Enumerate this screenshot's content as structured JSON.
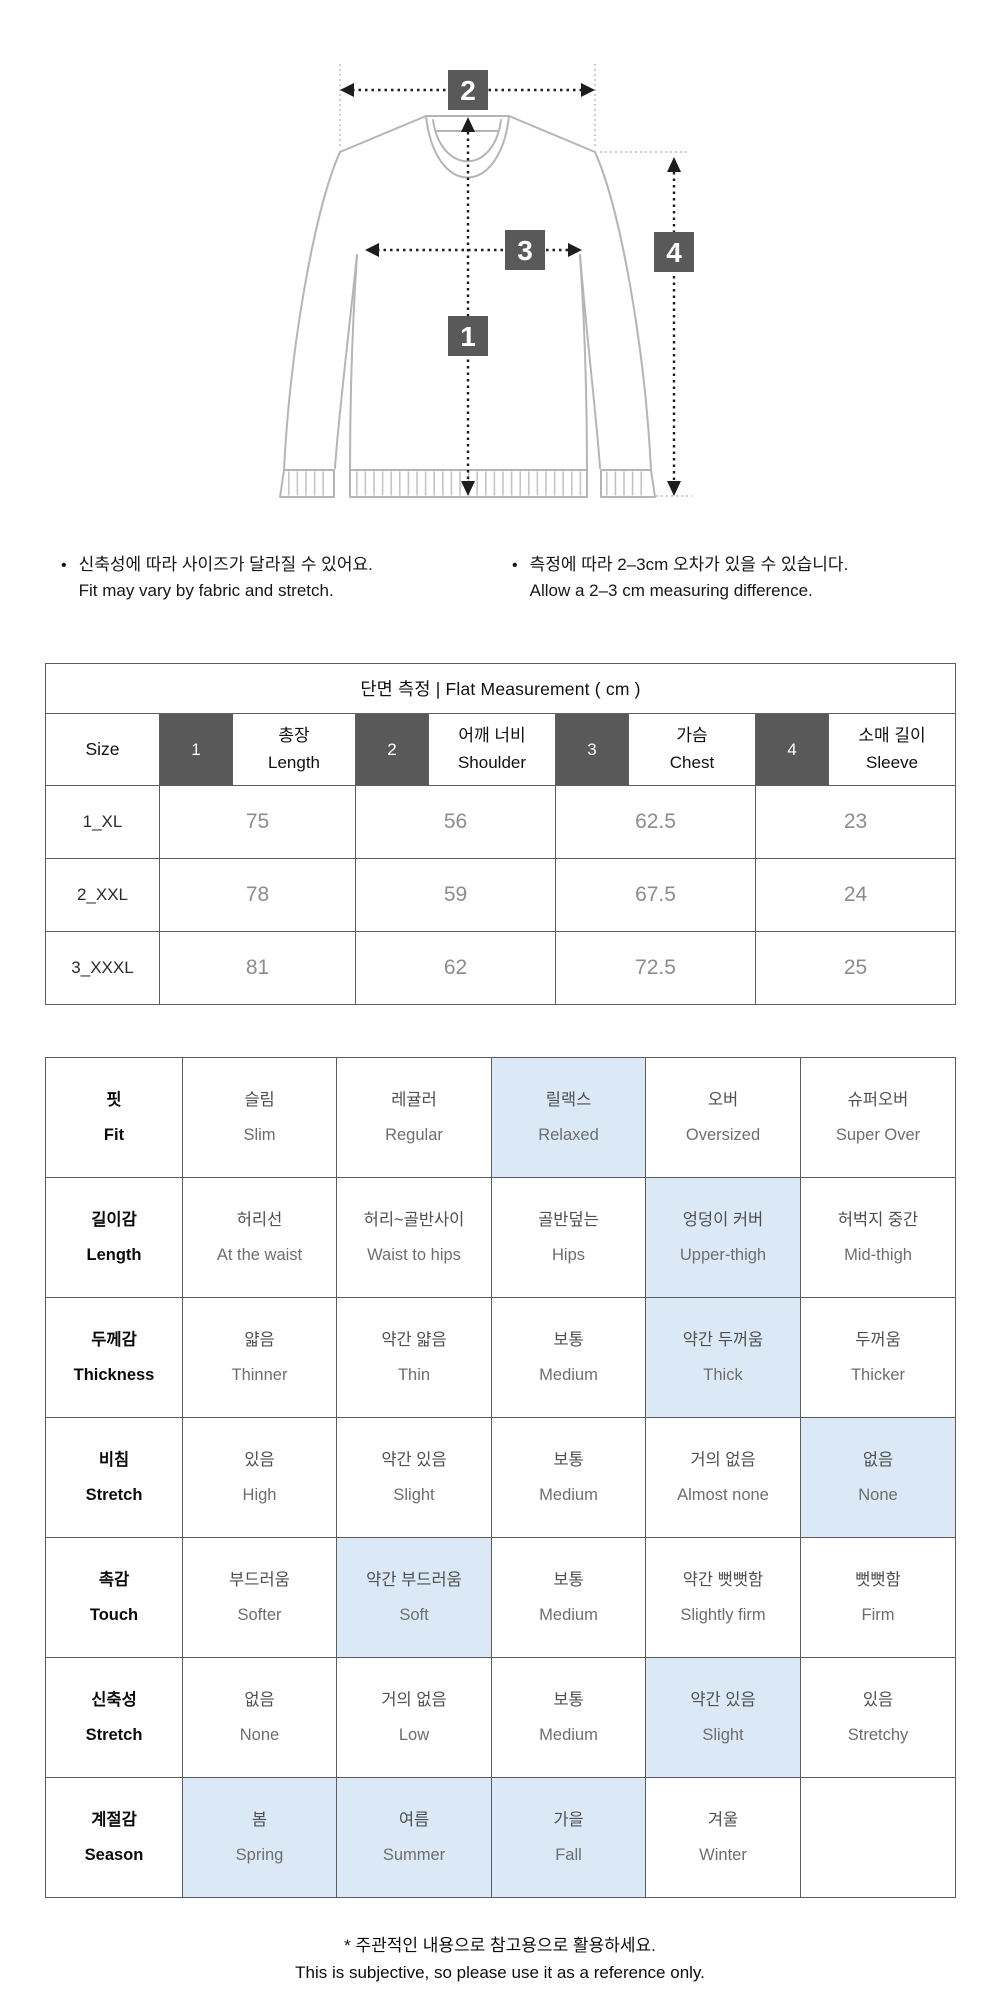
{
  "colors": {
    "highlight": "#dbe9f7",
    "badge": "#595959"
  },
  "diagram": {
    "badges": [
      "1",
      "2",
      "3",
      "4"
    ]
  },
  "notes": [
    {
      "ko": "신축성에 따라 사이즈가 달라질 수 있어요.",
      "en": "Fit may vary by fabric and stretch."
    },
    {
      "ko": "측정에 따라 2–3cm 오차가 있을 수 있습니다.",
      "en": "Allow a 2–3 cm measuring difference."
    }
  ],
  "size_table": {
    "title": "단면 측정  |  Flat Measurement  ( cm )",
    "size_header": "Size",
    "columns": [
      {
        "num": "1",
        "ko": "총장",
        "en": "Length"
      },
      {
        "num": "2",
        "ko": "어깨 너비",
        "en": "Shoulder"
      },
      {
        "num": "3",
        "ko": "가슴",
        "en": "Chest"
      },
      {
        "num": "4",
        "ko": "소매 길이",
        "en": "Sleeve"
      }
    ],
    "rows": [
      {
        "size": "1_XL",
        "values": [
          "75",
          "56",
          "62.5",
          "23"
        ]
      },
      {
        "size": "2_XXL",
        "values": [
          "78",
          "59",
          "67.5",
          "24"
        ]
      },
      {
        "size": "3_XXXL",
        "values": [
          "81",
          "62",
          "72.5",
          "25"
        ]
      }
    ]
  },
  "feature_table": {
    "rows": [
      {
        "label_ko": "핏",
        "label_en": "Fit",
        "highlight": [
          2
        ],
        "cells": [
          {
            "ko": "슬림",
            "en": "Slim"
          },
          {
            "ko": "레귤러",
            "en": "Regular"
          },
          {
            "ko": "릴랙스",
            "en": "Relaxed"
          },
          {
            "ko": "오버",
            "en": "Oversized"
          },
          {
            "ko": "슈퍼오버",
            "en": "Super Over"
          }
        ]
      },
      {
        "label_ko": "길이감",
        "label_en": "Length",
        "highlight": [
          3
        ],
        "cells": [
          {
            "ko": "허리선",
            "en": "At the waist"
          },
          {
            "ko": "허리~골반사이",
            "en": "Waist to hips"
          },
          {
            "ko": "골반덮는",
            "en": "Hips"
          },
          {
            "ko": "엉덩이 커버",
            "en": "Upper-thigh"
          },
          {
            "ko": "허벅지 중간",
            "en": "Mid-thigh"
          }
        ]
      },
      {
        "label_ko": "두께감",
        "label_en": "Thickness",
        "highlight": [
          3
        ],
        "cells": [
          {
            "ko": "얇음",
            "en": "Thinner"
          },
          {
            "ko": "약간 얇음",
            "en": "Thin"
          },
          {
            "ko": "보통",
            "en": "Medium"
          },
          {
            "ko": "약간 두꺼움",
            "en": "Thick"
          },
          {
            "ko": "두꺼움",
            "en": "Thicker"
          }
        ]
      },
      {
        "label_ko": "비침",
        "label_en": "Stretch",
        "highlight": [
          4
        ],
        "cells": [
          {
            "ko": "있음",
            "en": "High"
          },
          {
            "ko": "약간 있음",
            "en": "Slight"
          },
          {
            "ko": "보통",
            "en": "Medium"
          },
          {
            "ko": "거의 없음",
            "en": "Almost none"
          },
          {
            "ko": "없음",
            "en": "None"
          }
        ]
      },
      {
        "label_ko": "촉감",
        "label_en": "Touch",
        "highlight": [
          1
        ],
        "cells": [
          {
            "ko": "부드러움",
            "en": "Softer"
          },
          {
            "ko": "약간 부드러움",
            "en": "Soft"
          },
          {
            "ko": "보통",
            "en": "Medium"
          },
          {
            "ko": "약간 뻣뻣함",
            "en": "Slightly firm"
          },
          {
            "ko": "뻣뻣함",
            "en": "Firm"
          }
        ]
      },
      {
        "label_ko": "신축성",
        "label_en": "Stretch",
        "highlight": [
          3
        ],
        "cells": [
          {
            "ko": "없음",
            "en": "None"
          },
          {
            "ko": "거의 없음",
            "en": "Low"
          },
          {
            "ko": "보통",
            "en": "Medium"
          },
          {
            "ko": "약간 있음",
            "en": "Slight"
          },
          {
            "ko": "있음",
            "en": "Stretchy"
          }
        ]
      },
      {
        "label_ko": "계절감",
        "label_en": "Season",
        "highlight": [
          0,
          1,
          2
        ],
        "cells": [
          {
            "ko": "봄",
            "en": "Spring"
          },
          {
            "ko": "여름",
            "en": "Summer"
          },
          {
            "ko": "가을",
            "en": "Fall"
          },
          {
            "ko": "겨울",
            "en": "Winter"
          },
          {
            "ko": "",
            "en": ""
          }
        ]
      }
    ]
  },
  "footer": {
    "ko": "* 주관적인 내용으로 참고용으로 활용하세요.",
    "en": "This is subjective, so please use it as a reference only."
  }
}
